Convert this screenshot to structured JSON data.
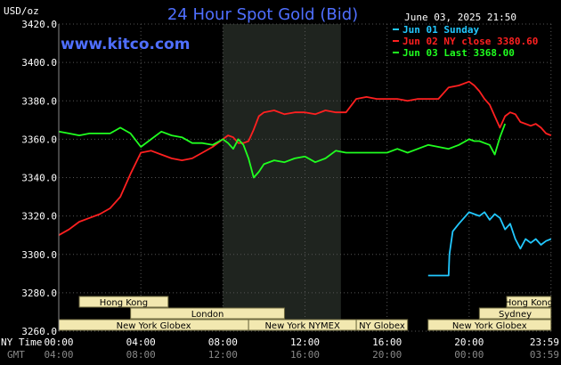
{
  "header": {
    "units": "USD/oz",
    "title": "24 Hour Spot Gold (Bid)",
    "timestamp": "June 03, 2025 21:50",
    "site": "www.kitco.com"
  },
  "colors": {
    "background": "#000000",
    "plot_background": "#000000",
    "shaded_band": "#1f241f",
    "grid": "#555555",
    "title": "#4f6fff",
    "series_sunday": "#22c8ff",
    "series_jun02": "#ff2020",
    "series_jun03": "#20ff20",
    "session_box_fill": "#f2e8b0",
    "session_box_stroke": "#6f6a40"
  },
  "axis": {
    "x_row_label_ny": "NY Time",
    "x_row_label_gmt": "GMT",
    "x_ticks_ny": [
      "00:00",
      "04:00",
      "08:00",
      "12:00",
      "16:00",
      "20:00",
      "23:59"
    ],
    "x_ticks_gmt": [
      "04:00",
      "08:00",
      "12:00",
      "16:00",
      "20:00",
      "00:00",
      "03:59"
    ],
    "y_ticks": [
      "3420.0",
      "3400.0",
      "3380.0",
      "3360.0",
      "3340.0",
      "3320.0",
      "3300.0",
      "3280.0",
      "3260.0"
    ]
  },
  "sessions": [
    {
      "label": "Hong Kong",
      "row": 0,
      "start": 1.0,
      "end": 5.33
    },
    {
      "label": "Hong Kong",
      "row": 0,
      "start": 21.83,
      "end": 23.99
    },
    {
      "label": "London",
      "row": 1,
      "start": 3.5,
      "end": 11.0
    },
    {
      "label": "Sydney",
      "row": 1,
      "start": 20.5,
      "end": 23.99
    },
    {
      "label": "New York Globex",
      "row": 2,
      "start": 0.0,
      "end": 9.25
    },
    {
      "label": "New York NYMEX",
      "row": 2,
      "start": 9.25,
      "end": 14.5
    },
    {
      "label": "NY Globex",
      "row": 2,
      "start": 14.5,
      "end": 17.0
    },
    {
      "label": "New York Globex",
      "row": 2,
      "start": 18.0,
      "end": 23.99
    }
  ],
  "chart_data": {
    "type": "line",
    "title": "24 Hour Spot Gold (Bid)",
    "ylabel": "USD/oz",
    "xlabel": "NY Time",
    "xlim": [
      0,
      24
    ],
    "ylim": [
      3260,
      3420
    ],
    "y_step": 20,
    "grid": true,
    "shaded_x_range": [
      8.0,
      13.75
    ],
    "legend_position": "top-right",
    "series": [
      {
        "name": "Jun 01 Sunday",
        "color": "#22c8ff",
        "x": [
          18.0,
          18.4,
          19.0,
          19.04,
          19.2,
          19.5,
          20.0,
          20.25,
          20.5,
          20.75,
          21.0,
          21.25,
          21.5,
          21.75,
          22.0,
          22.25,
          22.5,
          22.75,
          23.0,
          23.25,
          23.5,
          23.75,
          23.99
        ],
        "y": [
          3289,
          3289,
          3289,
          3300,
          3312,
          3316,
          3322,
          3321,
          3320,
          3322,
          3318,
          3321,
          3319,
          3313,
          3316,
          3308,
          3303,
          3308,
          3306,
          3308,
          3305,
          3307,
          3308
        ]
      },
      {
        "name": "Jun 02 NY close 3380.60",
        "color": "#ff2020",
        "x": [
          0.0,
          0.5,
          1.0,
          1.5,
          2.0,
          2.5,
          3.0,
          3.5,
          4.0,
          4.5,
          5.0,
          5.5,
          6.0,
          6.5,
          7.0,
          7.5,
          8.0,
          8.25,
          8.5,
          8.75,
          9.0,
          9.25,
          9.5,
          9.75,
          10.0,
          10.5,
          11.0,
          11.5,
          12.0,
          12.5,
          13.0,
          13.5,
          14.0,
          14.5,
          15.0,
          15.5,
          16.0,
          16.5,
          17.0,
          17.5,
          18.0,
          18.5,
          19.0,
          19.5,
          20.0,
          20.25,
          20.5,
          20.75,
          21.0,
          21.25,
          21.5,
          21.75,
          22.0,
          22.25,
          22.5,
          22.75,
          23.0,
          23.25,
          23.5,
          23.75,
          23.99
        ],
        "y": [
          3310,
          3313,
          3317,
          3319,
          3321,
          3324,
          3330,
          3342,
          3353,
          3354,
          3352,
          3350,
          3349,
          3350,
          3353,
          3356,
          3360,
          3362,
          3361,
          3358,
          3358,
          3359,
          3365,
          3372,
          3374,
          3375,
          3373,
          3374,
          3374,
          3373,
          3375,
          3374,
          3374,
          3381,
          3382,
          3381,
          3381,
          3381,
          3380,
          3381,
          3381,
          3381,
          3387,
          3388,
          3390,
          3388,
          3385,
          3381,
          3378,
          3372,
          3366,
          3372,
          3374,
          3373,
          3369,
          3368,
          3367,
          3368,
          3366,
          3363,
          3362
        ]
      },
      {
        "name": "Jun 03 Last 3368.00",
        "color": "#20ff20",
        "x": [
          0.0,
          0.5,
          1.0,
          1.5,
          2.0,
          2.5,
          3.0,
          3.5,
          4.0,
          4.5,
          5.0,
          5.5,
          6.0,
          6.5,
          7.0,
          7.5,
          8.0,
          8.25,
          8.5,
          8.75,
          9.0,
          9.25,
          9.5,
          9.75,
          10.0,
          10.5,
          11.0,
          11.5,
          12.0,
          12.5,
          13.0,
          13.5,
          14.0,
          14.5,
          15.0,
          15.5,
          16.0,
          16.5,
          17.0,
          17.5,
          18.0,
          18.5,
          19.0,
          19.5,
          20.0,
          20.25,
          20.5,
          20.75,
          21.0,
          21.25,
          21.5,
          21.75
        ],
        "y": [
          3364,
          3363,
          3362,
          3363,
          3363,
          3363,
          3366,
          3363,
          3356,
          3360,
          3364,
          3362,
          3361,
          3358,
          3358,
          3357,
          3360,
          3358,
          3355,
          3360,
          3357,
          3350,
          3340,
          3343,
          3347,
          3349,
          3348,
          3350,
          3351,
          3348,
          3350,
          3354,
          3353,
          3353,
          3353,
          3353,
          3353,
          3355,
          3353,
          3355,
          3357,
          3356,
          3355,
          3357,
          3360,
          3359,
          3359,
          3358,
          3357,
          3352,
          3361,
          3368
        ]
      }
    ]
  }
}
